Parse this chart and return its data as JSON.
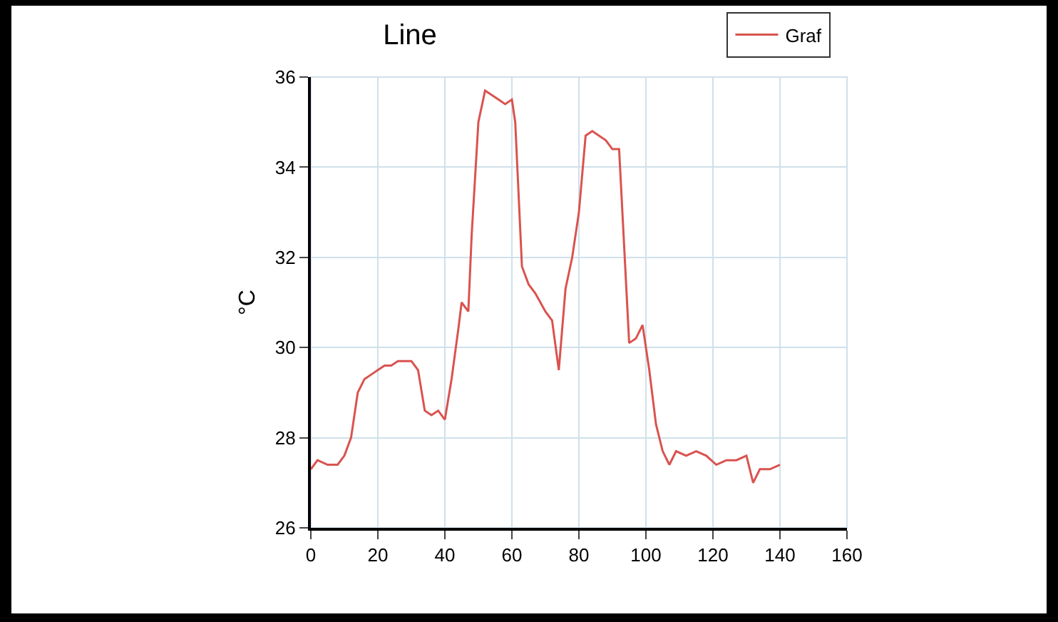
{
  "chart_data": {
    "type": "line",
    "title": "Line",
    "ylabel": "°C",
    "x": [
      0,
      2,
      5,
      8,
      10,
      12,
      14,
      16,
      18,
      20,
      22,
      24,
      26,
      28,
      30,
      32,
      34,
      36,
      38,
      40,
      42,
      44,
      45,
      47,
      48,
      50,
      52,
      54,
      56,
      58,
      60,
      61,
      63,
      65,
      67,
      70,
      72,
      74,
      76,
      78,
      80,
      82,
      84,
      86,
      88,
      90,
      92,
      95,
      97,
      99,
      101,
      103,
      105,
      107,
      109,
      112,
      115,
      118,
      121,
      124,
      127,
      130,
      132,
      134,
      137,
      140
    ],
    "series": [
      {
        "name": "Graf",
        "color": "#d9534f",
        "values": [
          27.3,
          27.5,
          27.4,
          27.4,
          27.6,
          28.0,
          29.0,
          29.3,
          29.4,
          29.5,
          29.6,
          29.6,
          29.7,
          29.7,
          29.7,
          29.5,
          28.6,
          28.5,
          28.6,
          28.4,
          29.3,
          30.4,
          31.0,
          30.8,
          32.5,
          35.0,
          35.7,
          35.6,
          35.5,
          35.4,
          35.5,
          35.0,
          31.8,
          31.4,
          31.2,
          30.8,
          30.6,
          29.5,
          31.3,
          32.0,
          33.0,
          34.7,
          34.8,
          34.7,
          34.6,
          34.4,
          34.4,
          30.1,
          30.2,
          30.5,
          29.5,
          28.3,
          27.7,
          27.4,
          27.7,
          27.6,
          27.7,
          27.6,
          27.4,
          27.5,
          27.5,
          27.6,
          27.0,
          27.3,
          27.3,
          27.4
        ]
      }
    ],
    "xlim": [
      0,
      160
    ],
    "xticks": [
      0,
      20,
      40,
      60,
      80,
      100,
      120,
      140,
      160
    ],
    "ylim": [
      26,
      36
    ],
    "yticks": [
      26,
      28,
      30,
      32,
      34,
      36
    ],
    "grid": true,
    "legend": "top right",
    "marker": "none",
    "line_style": "solid"
  }
}
